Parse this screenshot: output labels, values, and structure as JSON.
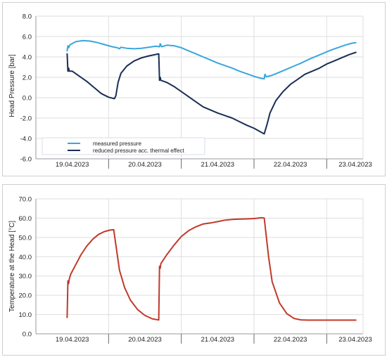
{
  "chart_data": [
    {
      "type": "line",
      "title": "",
      "xlabel": "",
      "ylabel": "Head Pressure [bar]",
      "ylim": [
        -6.0,
        8.0
      ],
      "yticks": [
        "8.0",
        "6.0",
        "4.0",
        "2.0",
        "0.0",
        "-2.0",
        "-4.0",
        "-6.0"
      ],
      "xlim": [
        0,
        4.5
      ],
      "categories": [
        "19.04.2023",
        "20.04.2023",
        "21.04.2023",
        "22.04.2023",
        "23.04.2023"
      ],
      "grid": true,
      "legend": "bottom-left",
      "series": [
        {
          "name": "measured pressure",
          "color": "#3aa6dc",
          "points": [
            [
              0.43,
              4.6
            ],
            [
              0.44,
              5.1
            ],
            [
              0.45,
              4.9
            ],
            [
              0.47,
              5.2
            ],
            [
              0.55,
              5.5
            ],
            [
              0.65,
              5.6
            ],
            [
              0.75,
              5.55
            ],
            [
              0.85,
              5.4
            ],
            [
              0.95,
              5.2
            ],
            [
              1.05,
              5.0
            ],
            [
              1.12,
              4.9
            ],
            [
              1.15,
              4.8
            ],
            [
              1.17,
              4.95
            ],
            [
              1.25,
              4.85
            ],
            [
              1.35,
              4.8
            ],
            [
              1.45,
              4.85
            ],
            [
              1.55,
              4.95
            ],
            [
              1.65,
              5.05
            ],
            [
              1.7,
              5.0
            ],
            [
              1.71,
              5.3
            ],
            [
              1.73,
              5.0
            ],
            [
              1.8,
              5.15
            ],
            [
              1.9,
              5.1
            ],
            [
              2.0,
              4.9
            ],
            [
              2.1,
              4.6
            ],
            [
              2.2,
              4.3
            ],
            [
              2.3,
              4.0
            ],
            [
              2.4,
              3.7
            ],
            [
              2.5,
              3.4
            ],
            [
              2.6,
              3.15
            ],
            [
              2.7,
              2.9
            ],
            [
              2.8,
              2.6
            ],
            [
              2.9,
              2.35
            ],
            [
              3.0,
              2.1
            ],
            [
              3.1,
              1.9
            ],
            [
              3.14,
              1.85
            ],
            [
              3.15,
              2.3
            ],
            [
              3.17,
              2.05
            ],
            [
              3.25,
              2.2
            ],
            [
              3.35,
              2.5
            ],
            [
              3.45,
              2.8
            ],
            [
              3.55,
              3.1
            ],
            [
              3.65,
              3.4
            ],
            [
              3.75,
              3.75
            ],
            [
              3.85,
              4.05
            ],
            [
              3.95,
              4.35
            ],
            [
              4.05,
              4.65
            ],
            [
              4.15,
              4.9
            ],
            [
              4.25,
              5.15
            ],
            [
              4.35,
              5.35
            ],
            [
              4.4,
              5.4
            ]
          ]
        },
        {
          "name": "reduced pressure acc. thermal effect",
          "color": "#1a2e55",
          "points": [
            [
              0.43,
              4.3
            ],
            [
              0.44,
              2.6
            ],
            [
              0.45,
              2.9
            ],
            [
              0.46,
              2.6
            ],
            [
              0.5,
              2.6
            ],
            [
              0.6,
              2.1
            ],
            [
              0.7,
              1.6
            ],
            [
              0.8,
              1.0
            ],
            [
              0.9,
              0.4
            ],
            [
              1.0,
              0.05
            ],
            [
              1.08,
              -0.1
            ],
            [
              1.1,
              0.2
            ],
            [
              1.13,
              1.5
            ],
            [
              1.17,
              2.4
            ],
            [
              1.25,
              3.1
            ],
            [
              1.35,
              3.6
            ],
            [
              1.45,
              3.9
            ],
            [
              1.55,
              4.1
            ],
            [
              1.62,
              4.2
            ],
            [
              1.69,
              4.3
            ],
            [
              1.7,
              1.7
            ],
            [
              1.71,
              2.0
            ],
            [
              1.72,
              1.7
            ],
            [
              1.8,
              1.5
            ],
            [
              1.9,
              1.1
            ],
            [
              2.0,
              0.6
            ],
            [
              2.1,
              0.1
            ],
            [
              2.2,
              -0.4
            ],
            [
              2.3,
              -0.9
            ],
            [
              2.4,
              -1.2
            ],
            [
              2.5,
              -1.5
            ],
            [
              2.6,
              -1.75
            ],
            [
              2.7,
              -2.0
            ],
            [
              2.8,
              -2.35
            ],
            [
              2.9,
              -2.7
            ],
            [
              3.0,
              -3.0
            ],
            [
              3.1,
              -3.4
            ],
            [
              3.14,
              -3.55
            ],
            [
              3.18,
              -2.6
            ],
            [
              3.22,
              -1.5
            ],
            [
              3.3,
              -0.3
            ],
            [
              3.4,
              0.6
            ],
            [
              3.5,
              1.3
            ],
            [
              3.6,
              1.8
            ],
            [
              3.7,
              2.3
            ],
            [
              3.8,
              2.6
            ],
            [
              3.9,
              2.9
            ],
            [
              4.0,
              3.3
            ],
            [
              4.1,
              3.6
            ],
            [
              4.2,
              3.9
            ],
            [
              4.3,
              4.2
            ],
            [
              4.4,
              4.45
            ]
          ]
        }
      ]
    },
    {
      "type": "line",
      "title": "",
      "xlabel": "",
      "ylabel": "Temperature at the Head [°C]",
      "ylim": [
        0.0,
        70.0
      ],
      "yticks": [
        "70.0",
        "60.0",
        "50.0",
        "40.0",
        "30.0",
        "20.0",
        "10.0",
        "0.0"
      ],
      "xlim": [
        0,
        4.5
      ],
      "categories": [
        "19.04.2023",
        "20.04.2023",
        "21.04.2023",
        "22.04.2023",
        "23.04.2023"
      ],
      "grid": true,
      "series": [
        {
          "color": "#c0392b",
          "points": [
            [
              0.43,
              8.5
            ],
            [
              0.44,
              27.5
            ],
            [
              0.45,
              26.0
            ],
            [
              0.46,
              28.5
            ],
            [
              0.48,
              31.0
            ],
            [
              0.55,
              36.0
            ],
            [
              0.62,
              41.0
            ],
            [
              0.7,
              45.5
            ],
            [
              0.78,
              49.0
            ],
            [
              0.86,
              51.5
            ],
            [
              0.94,
              53.0
            ],
            [
              1.02,
              53.8
            ],
            [
              1.07,
              54.0
            ],
            [
              1.1,
              46.0
            ],
            [
              1.15,
              33.0
            ],
            [
              1.22,
              24.0
            ],
            [
              1.3,
              17.5
            ],
            [
              1.4,
              12.5
            ],
            [
              1.5,
              9.5
            ],
            [
              1.6,
              7.8
            ],
            [
              1.69,
              7.2
            ],
            [
              1.7,
              35.0
            ],
            [
              1.71,
              34.0
            ],
            [
              1.72,
              36.5
            ],
            [
              1.8,
              41.0
            ],
            [
              1.9,
              46.0
            ],
            [
              2.0,
              50.5
            ],
            [
              2.1,
              53.5
            ],
            [
              2.2,
              55.5
            ],
            [
              2.3,
              57.0
            ],
            [
              2.4,
              57.5
            ],
            [
              2.5,
              58.2
            ],
            [
              2.6,
              59.0
            ],
            [
              2.7,
              59.3
            ],
            [
              2.8,
              59.5
            ],
            [
              2.9,
              59.6
            ],
            [
              3.0,
              59.8
            ],
            [
              3.1,
              60.2
            ],
            [
              3.14,
              60.1
            ],
            [
              3.2,
              40.0
            ],
            [
              3.25,
              27.0
            ],
            [
              3.35,
              16.0
            ],
            [
              3.45,
              10.5
            ],
            [
              3.55,
              8.0
            ],
            [
              3.65,
              7.2
            ],
            [
              3.75,
              7.1
            ],
            [
              3.9,
              7.1
            ],
            [
              4.1,
              7.1
            ],
            [
              4.3,
              7.1
            ],
            [
              4.4,
              7.1
            ]
          ]
        }
      ]
    }
  ]
}
